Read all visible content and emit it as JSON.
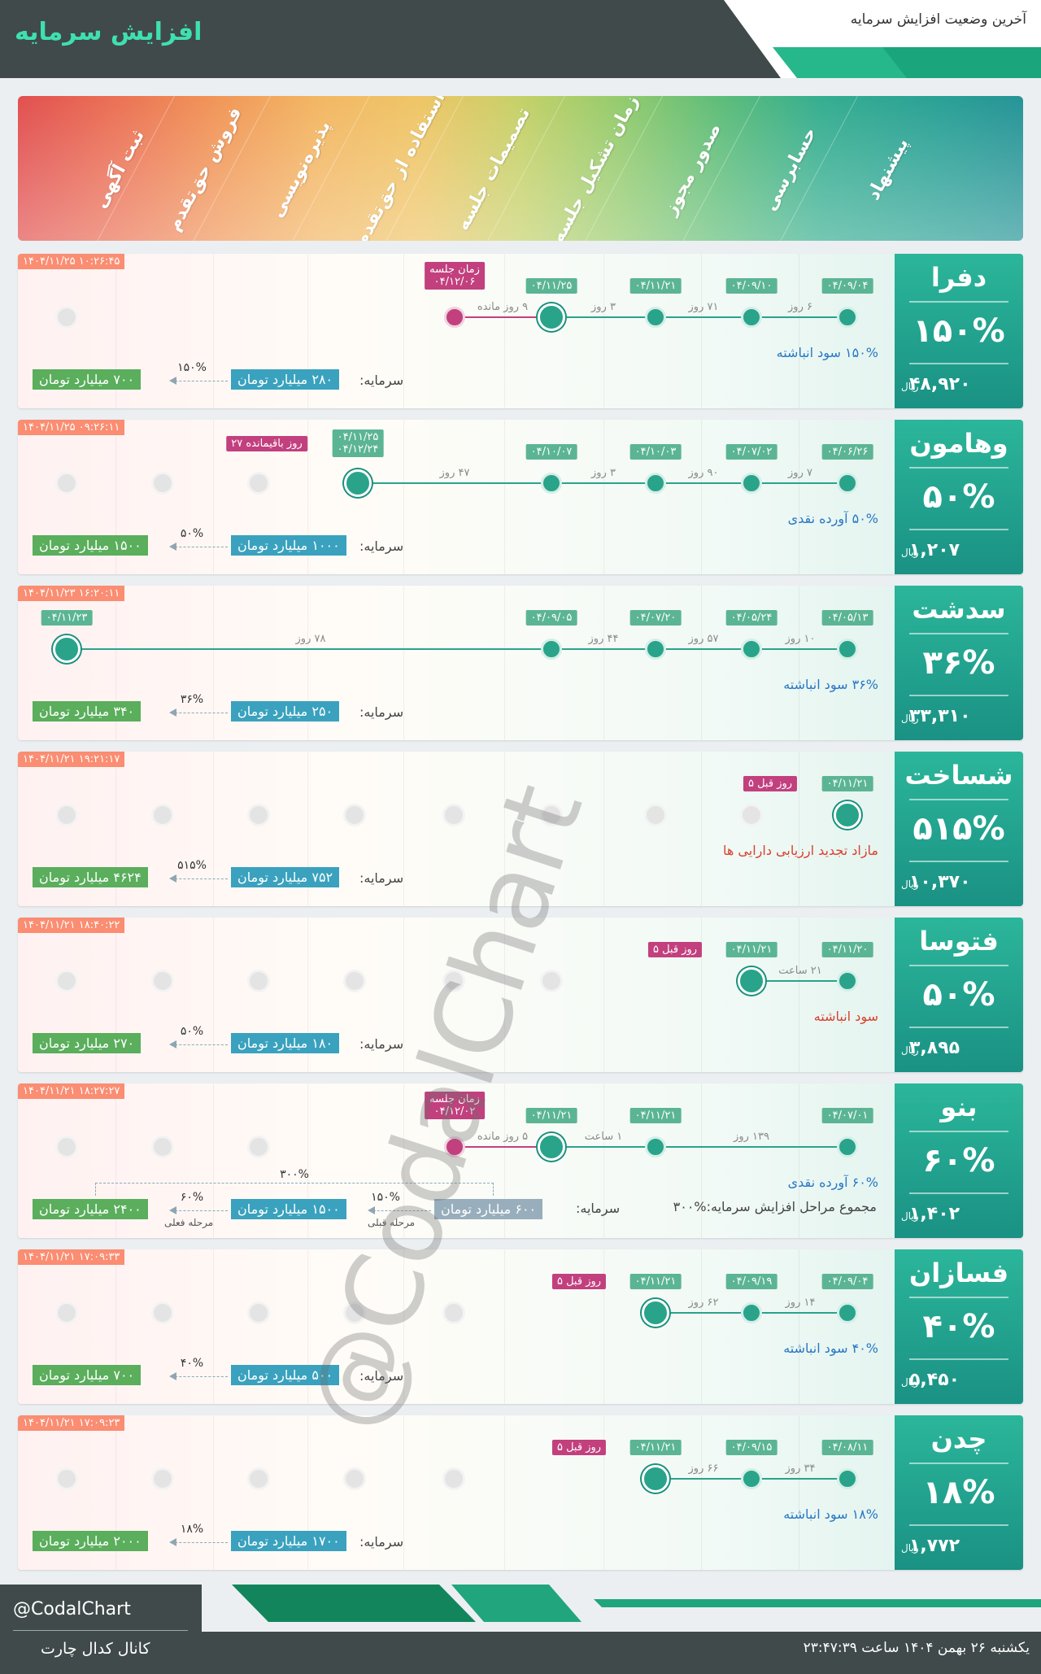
{
  "header": {
    "title": "افزایش سرمایه",
    "subtitle": "آخرین وضعیت افزایش سرمایه"
  },
  "stages": [
    "ثبت آگهی",
    "فروش حق‌تقدم",
    "پذیره‌نویسی",
    "استفاده از حق‌تقدم",
    "تصمیمات جلسه",
    "زمان تشکیل جلسه",
    "صدور مجوز",
    "حسابرسی",
    "پیشنهاد"
  ],
  "watermark": "@CodalChart",
  "cards": [
    {
      "symbol": "دفرا",
      "percent": "۱۵۰%",
      "price": "۴۸,۹۲۰",
      "price_unit": "ریال",
      "timestamp": "۱۴۰۴/۱۱/۲۵ ۱۰:۲۶:۴۵",
      "dates": [
        "۰۴/۰۹/۰۴",
        "۰۴/۰۹/۱۰",
        "۰۴/۱۱/۲۱",
        "۰۴/۱۱/۲۵"
      ],
      "gaps": [
        "۶ روز",
        "۷۱ روز",
        "۳ روز",
        "۹ روز مانده"
      ],
      "meeting_label": "زمان جلسه",
      "meeting_date": "۰۴/۱۲/۰۶",
      "desc": "۱۵۰% سود انباشته",
      "capital_label": "سرمایه:",
      "capital_now": "۲۸۰ میلیارد تومان",
      "capital_after": "۷۰۰ میلیارد تومان",
      "capital_pct": "۱۵۰%"
    },
    {
      "symbol": "وهامون",
      "percent": "۵۰%",
      "price": "۱,۲۰۷",
      "price_unit": "ریال",
      "timestamp": "۱۴۰۴/۱۱/۲۵ ۰۹:۲۶:۱۱",
      "dates": [
        "۰۴/۰۶/۲۶",
        "۰۴/۰۷/۰۲",
        "۰۴/۱۰/۰۳",
        "۰۴/۱۰/۰۷"
      ],
      "gaps": [
        "۷ روز",
        "۹۰ روز",
        "۳ روز",
        "۴۷ روز"
      ],
      "pair_dates": [
        "۰۴/۱۱/۲۵",
        "۰۴/۱۲/۲۴"
      ],
      "remaining": "۲۷ روز باقیمانده",
      "desc": "۵۰% آورده نقدی",
      "capital_label": "سرمایه:",
      "capital_now": "۱۰۰۰ میلیارد تومان",
      "capital_after": "۱۵۰۰ میلیارد تومان",
      "capital_pct": "۵۰%"
    },
    {
      "symbol": "سدشت",
      "percent": "۳۶%",
      "price": "۳۳,۳۱۰",
      "price_unit": "ریال",
      "timestamp": "۱۴۰۴/۱۱/۲۳ ۱۶:۲۰:۱۱",
      "dates": [
        "۰۴/۰۵/۱۳",
        "۰۴/۰۵/۲۴",
        "۰۴/۰۷/۲۰",
        "۰۴/۰۹/۰۵",
        "۰۴/۱۱/۲۳"
      ],
      "gaps": [
        "۱۰ روز",
        "۵۷ روز",
        "۴۴ روز",
        "۷۸ روز"
      ],
      "desc": "۳۶% سود انباشته",
      "capital_label": "سرمایه:",
      "capital_now": "۲۵۰ میلیارد تومان",
      "capital_after": "۳۴۰ میلیارد تومان",
      "capital_pct": "۳۶%"
    },
    {
      "symbol": "شساخت",
      "percent": "۵۱۵%",
      "price": "۱۰,۳۷۰",
      "price_unit": "ریال",
      "timestamp": "۱۴۰۴/۱۱/۲۱ ۱۹:۲۱:۱۷",
      "dates": [
        "۰۴/۱۱/۲۱"
      ],
      "ago": "۵ روز قبل",
      "desc": "مازاد تجدید ارزیابی دارایی ها",
      "capital_label": "سرمایه:",
      "capital_now": "۷۵۲ میلیارد تومان",
      "capital_after": "۴۶۲۴ میلیارد تومان",
      "capital_pct": "۵۱۵%"
    },
    {
      "symbol": "فتوسا",
      "percent": "۵۰%",
      "price": "۳,۸۹۵",
      "price_unit": "ریال",
      "timestamp": "۱۴۰۴/۱۱/۲۱ ۱۸:۴۰:۲۲",
      "dates": [
        "۰۴/۱۱/۲۰",
        "۰۴/۱۱/۲۱"
      ],
      "gaps": [
        "۲۱ ساعت"
      ],
      "ago": "۵ روز قبل",
      "desc": "سود انباشته",
      "capital_label": "سرمایه:",
      "capital_now": "۱۸۰ میلیارد تومان",
      "capital_after": "۲۷۰ میلیارد تومان",
      "capital_pct": "۵۰%"
    },
    {
      "symbol": "بنو",
      "percent": "۶۰%",
      "price": "۱,۴۰۲",
      "price_unit": "ریال",
      "timestamp": "۱۴۰۴/۱۱/۲۱ ۱۸:۲۷:۲۷",
      "dates": [
        "۰۴/۰۷/۰۱",
        "۰۴/۱۱/۲۱",
        "۰۴/۱۱/۲۱"
      ],
      "gaps": [
        "۱۳۹ روز",
        "۱ ساعت",
        "۵ روز مانده"
      ],
      "meeting_label": "زمان جلسه",
      "meeting_date": "۰۴/۱۲/۰۲",
      "desc": "۶۰% آورده نقدی",
      "total_label": "مجموع مراحل افزایش سرمایه:%۳۰۰",
      "capital_label": "سرمایه:",
      "capital_prev": "۶۰۰ میلیارد تومان",
      "capital_now": "۱۵۰۰ میلیارد تومان",
      "capital_after": "۲۴۰۰ میلیارد تومان",
      "pct_prev": "۱۵۰%",
      "capital_pct": "۶۰%",
      "total_pct": "۳۰۰%",
      "prev_stage": "مرحله قبلی",
      "current_stage": "مرحله فعلی"
    },
    {
      "symbol": "فسازان",
      "percent": "۴۰%",
      "price": "۵,۴۵۰",
      "price_unit": "ریال",
      "timestamp": "۱۴۰۴/۱۱/۲۱ ۱۷:۰۹:۳۳",
      "dates": [
        "۰۴/۰۹/۰۴",
        "۰۴/۰۹/۱۹",
        "۰۴/۱۱/۲۱"
      ],
      "gaps": [
        "۱۴ روز",
        "۶۲ روز"
      ],
      "ago": "۵ روز قبل",
      "desc": "۴۰% سود انباشته",
      "capital_label": "سرمایه:",
      "capital_now": "۵۰۰ میلیارد تومان",
      "capital_after": "۷۰۰ میلیارد تومان",
      "capital_pct": "۴۰%"
    },
    {
      "symbol": "چدن",
      "percent": "۱۸%",
      "price": "۱,۷۷۲",
      "price_unit": "ریال",
      "timestamp": "۱۴۰۴/۱۱/۲۱ ۱۷:۰۹:۲۳",
      "dates": [
        "۰۴/۰۸/۱۱",
        "۰۴/۰۹/۱۵",
        "۰۴/۱۱/۲۱"
      ],
      "gaps": [
        "۳۴ روز",
        "۶۶ روز"
      ],
      "ago": "۵ روز قبل",
      "desc": "۱۸% سود انباشته",
      "capital_label": "سرمایه:",
      "capital_now": "۱۷۰۰ میلیارد تومان",
      "capital_after": "۲۰۰۰ میلیارد تومان",
      "capital_pct": "۱۸%"
    }
  ],
  "footer": {
    "handle": "@CodalChart",
    "channel": "کانال کدال چارت",
    "datetime": "یکشنبه ۲۶ بهمن ۱۴۰۴ ساعت ۲۳:۴۷:۳۹"
  }
}
